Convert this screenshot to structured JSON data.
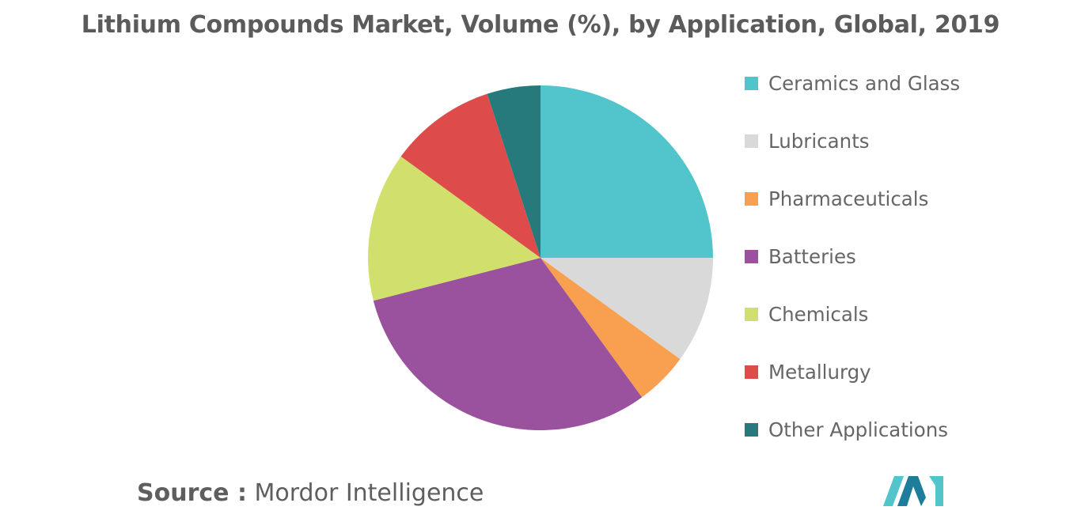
{
  "chart_data": {
    "type": "pie",
    "title": "Lithium Compounds Market, Volume (%), by Application, Global, 2019",
    "slices": [
      {
        "label": "Ceramics and Glass",
        "value": 25,
        "color": "#52c4cb"
      },
      {
        "label": "Lubricants",
        "value": 10,
        "color": "#d9d9d9"
      },
      {
        "label": "Pharmaceuticals",
        "value": 5,
        "color": "#f9a050"
      },
      {
        "label": "Batteries",
        "value": 31,
        "color": "#9a519e"
      },
      {
        "label": "Chemicals",
        "value": 14,
        "color": "#d1e06c"
      },
      {
        "label": "Metallurgy",
        "value": 10,
        "color": "#de4b4b"
      },
      {
        "label": "Other Applications",
        "value": 5,
        "color": "#267a7b"
      }
    ],
    "legend_position": "right"
  },
  "source": {
    "prefix": "Source :",
    "name": "Mordor Intelligence"
  },
  "logo": {
    "colors": [
      "#52c4cb",
      "#1d7d9a"
    ]
  }
}
